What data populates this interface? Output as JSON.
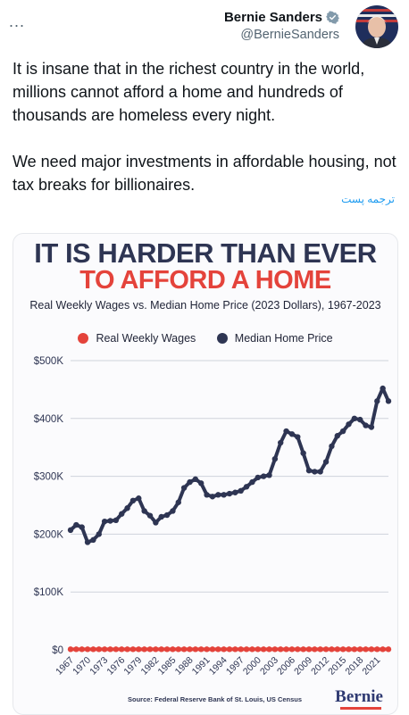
{
  "tweet": {
    "more_label": "...",
    "author_name": "Bernie Sanders",
    "author_handle": "@BernieSanders",
    "verified_icon": "verified-badge-icon",
    "text_paragraphs": [
      "It is insane that in the richest country in the world, millions cannot afford a home and hundreds of thousands are homeless every night.",
      "We need major investments in affordable housing, not tax breaks for billionaires."
    ],
    "translate_label": "ترجمه پست"
  },
  "image": {
    "source": "Source: Federal Reserve Bank of St. Louis, US Census",
    "brand": "Bernie"
  },
  "colors": {
    "wages": "#e4433b",
    "home": "#2e3553",
    "verified": "#829aab",
    "link": "#1d9bf0"
  },
  "chart_data": {
    "type": "line",
    "title": "IT IS HARDER THAN EVER",
    "subtitle_highlight": "TO AFFORD A HOME",
    "subtitle": "Real Weekly Wages vs. Median Home Price (2023 Dollars), 1967-2023",
    "xlabel": "",
    "ylabel": "",
    "ylim": [
      0,
      500000
    ],
    "y_ticks": [
      0,
      100000,
      200000,
      300000,
      400000,
      500000
    ],
    "y_tick_labels": [
      "$0",
      "$100K",
      "$200K",
      "$300K",
      "$400K",
      "$500K"
    ],
    "x_tick_labels": [
      "1967",
      "1970",
      "1973",
      "1976",
      "1979",
      "1982",
      "1985",
      "1988",
      "1991",
      "1994",
      "1997",
      "2000",
      "2003",
      "2006",
      "2009",
      "2012",
      "2015",
      "2018",
      "2021"
    ],
    "grid": true,
    "legend_position": "top-center",
    "x": [
      1967,
      1968,
      1969,
      1970,
      1971,
      1972,
      1973,
      1974,
      1975,
      1976,
      1977,
      1978,
      1979,
      1980,
      1981,
      1982,
      1983,
      1984,
      1985,
      1986,
      1987,
      1988,
      1989,
      1990,
      1991,
      1992,
      1993,
      1994,
      1995,
      1996,
      1997,
      1998,
      1999,
      2000,
      2001,
      2002,
      2003,
      2004,
      2005,
      2006,
      2007,
      2008,
      2009,
      2010,
      2011,
      2012,
      2013,
      2014,
      2015,
      2016,
      2017,
      2018,
      2019,
      2020,
      2021,
      2022,
      2023
    ],
    "series": [
      {
        "name": "Real Weekly Wages",
        "values": [
          1000,
          1000,
          1000,
          1000,
          1000,
          1000,
          1000,
          1000,
          1000,
          1000,
          1000,
          1000,
          1000,
          1000,
          1000,
          1000,
          1000,
          1000,
          1000,
          1000,
          1000,
          1000,
          1000,
          1000,
          1000,
          1000,
          1000,
          1000,
          1000,
          1000,
          1000,
          1000,
          1000,
          1000,
          1000,
          1000,
          1000,
          1000,
          1000,
          1000,
          1000,
          1000,
          1000,
          1000,
          1000,
          1000,
          1000,
          1000,
          1000,
          1000,
          1000,
          1000,
          1000,
          1000,
          1000,
          1000,
          1000
        ]
      },
      {
        "name": "Median Home Price",
        "values": [
          207000,
          216000,
          212000,
          186000,
          190000,
          200000,
          222000,
          223000,
          224000,
          235000,
          245000,
          258000,
          262000,
          240000,
          232000,
          220000,
          230000,
          233000,
          240000,
          255000,
          280000,
          290000,
          295000,
          288000,
          268000,
          265000,
          268000,
          268000,
          270000,
          272000,
          275000,
          282000,
          290000,
          298000,
          300000,
          302000,
          330000,
          358000,
          378000,
          373000,
          368000,
          340000,
          310000,
          308000,
          308000,
          325000,
          352000,
          370000,
          378000,
          390000,
          400000,
          398000,
          388000,
          385000,
          430000,
          452000,
          430000
        ]
      }
    ]
  }
}
